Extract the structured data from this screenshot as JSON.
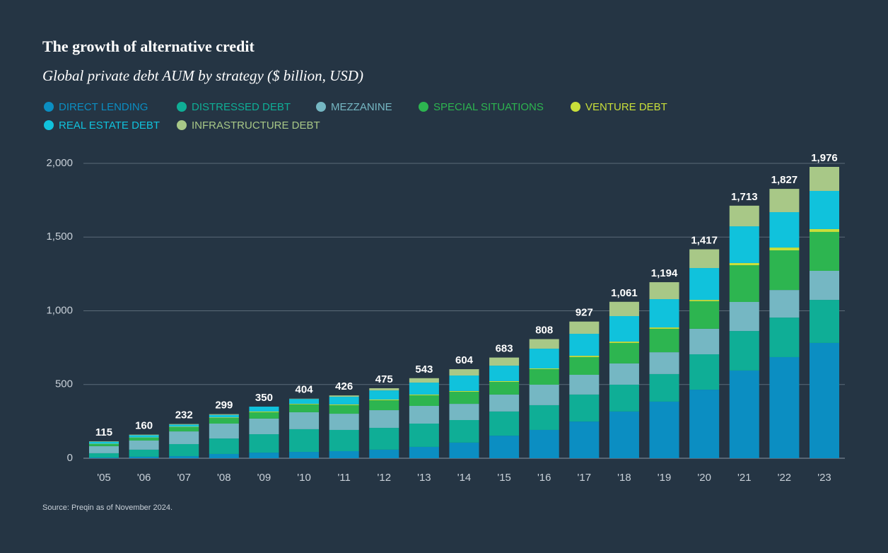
{
  "chart_data": {
    "type": "stacked_bar",
    "title": "The growth of alternative credit",
    "subtitle": "Global private debt AUM by strategy ($ billion, USD)",
    "source": "Source: Preqin as of November 2024.",
    "categories": [
      "'05",
      "'06",
      "'07",
      "'08",
      "'09",
      "'10",
      "'11",
      "'12",
      "'13",
      "'14",
      "'15",
      "'16",
      "'17",
      "'18",
      "'19",
      "'20",
      "'21",
      "'22",
      "'23"
    ],
    "series": [
      {
        "name": "DIRECT LENDING",
        "color": "#0b8ec2",
        "values": [
          5,
          10,
          14,
          29,
          38,
          43,
          48,
          58,
          77,
          106,
          153,
          192,
          249,
          317,
          384,
          465,
          595,
          686,
          782
        ]
      },
      {
        "name": "DISTRESSED DEBT",
        "color": "#0fae96",
        "values": [
          29,
          48,
          82,
          105,
          125,
          154,
          144,
          148,
          158,
          153,
          164,
          168,
          183,
          182,
          187,
          240,
          268,
          268,
          292
        ]
      },
      {
        "name": "MEZZANINE",
        "color": "#75b7c3",
        "values": [
          48,
          62,
          86,
          101,
          106,
          115,
          110,
          120,
          120,
          110,
          115,
          139,
          134,
          144,
          148,
          173,
          197,
          187,
          197
        ]
      },
      {
        "name": "SPECIAL SITUATIONS",
        "color": "#2db550",
        "values": [
          14,
          19,
          29,
          38,
          43,
          53,
          58,
          67,
          72,
          82,
          86,
          105,
          120,
          139,
          159,
          187,
          249,
          269,
          264
        ]
      },
      {
        "name": "VENTURE DEBT",
        "color": "#c9df3a",
        "values": [
          2,
          2,
          3,
          4,
          5,
          4,
          5,
          5,
          5,
          5,
          5,
          5,
          9,
          9,
          9,
          9,
          15,
          19,
          19
        ]
      },
      {
        "name": "REAL ESTATE DEBT",
        "color": "#10c2dc",
        "values": [
          14,
          15,
          14,
          17,
          33,
          33,
          52,
          62,
          81,
          105,
          105,
          134,
          149,
          173,
          192,
          216,
          249,
          240,
          259
        ]
      },
      {
        "name": "INFRASTRUCTURE DEBT",
        "color": "#a8c887",
        "values": [
          3,
          4,
          4,
          5,
          0,
          2,
          9,
          15,
          30,
          43,
          55,
          65,
          83,
          97,
          115,
          127,
          140,
          158,
          163
        ]
      }
    ],
    "totals": [
      115,
      160,
      232,
      299,
      350,
      404,
      426,
      475,
      543,
      604,
      683,
      808,
      927,
      1061,
      1194,
      1417,
      1713,
      1827,
      1976
    ],
    "value_labels": [
      "115",
      "160",
      "232",
      "299",
      "350",
      "404",
      "426",
      "475",
      "543",
      "604",
      "683",
      "808",
      "927",
      "1,061",
      "1,194",
      "1,417",
      "1,713",
      "1,827",
      "1,976"
    ],
    "ylim": [
      0,
      2000
    ],
    "yticks": [
      0,
      500,
      {
        "value": 1000,
        "label": "1,000"
      },
      {
        "value": 1500,
        "label": "1,500"
      },
      {
        "value": 2000,
        "label": "2,000"
      }
    ],
    "grid": true
  }
}
